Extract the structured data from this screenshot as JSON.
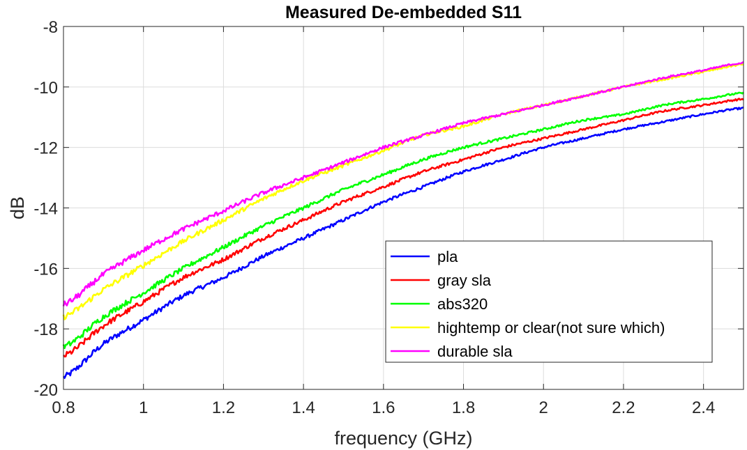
{
  "chart_data": {
    "type": "line",
    "title": "Measured De-embedded S11",
    "xlabel": "frequency (GHz)",
    "ylabel": "dB",
    "xlim": [
      0.8,
      2.5
    ],
    "ylim": [
      -20,
      -8
    ],
    "xticks": [
      0.8,
      1,
      1.2,
      1.4,
      1.6,
      1.8,
      2,
      2.2,
      2.4
    ],
    "xtick_labels": [
      "0.8",
      "1",
      "1.2",
      "1.4",
      "1.6",
      "1.8",
      "2",
      "2.2",
      "2.4"
    ],
    "yticks": [
      -20,
      -18,
      -16,
      -14,
      -12,
      -10,
      -8
    ],
    "ytick_labels": [
      "-20",
      "-18",
      "-16",
      "-14",
      "-12",
      "-10",
      "-8"
    ],
    "grid": true,
    "legend_position": "bottom-right",
    "x": [
      0.8,
      0.9,
      1.0,
      1.1,
      1.2,
      1.3,
      1.4,
      1.5,
      1.6,
      1.7,
      1.8,
      1.9,
      2.0,
      2.1,
      2.2,
      2.3,
      2.4,
      2.5
    ],
    "series": [
      {
        "name": "pla",
        "color": "#0000ff",
        "values": [
          -19.6,
          -18.5,
          -17.7,
          -16.9,
          -16.3,
          -15.6,
          -15.0,
          -14.4,
          -13.8,
          -13.3,
          -12.8,
          -12.4,
          -12.0,
          -11.7,
          -11.4,
          -11.15,
          -10.9,
          -10.7
        ]
      },
      {
        "name": "gray sla",
        "color": "#ff0000",
        "values": [
          -18.9,
          -17.9,
          -17.1,
          -16.3,
          -15.7,
          -15.0,
          -14.4,
          -13.8,
          -13.3,
          -12.8,
          -12.4,
          -12.0,
          -11.7,
          -11.4,
          -11.1,
          -10.8,
          -10.6,
          -10.4
        ]
      },
      {
        "name": "abs320",
        "color": "#00ff00",
        "values": [
          -18.6,
          -17.6,
          -16.8,
          -16.0,
          -15.3,
          -14.6,
          -14.0,
          -13.4,
          -12.9,
          -12.4,
          -12.0,
          -11.7,
          -11.4,
          -11.1,
          -10.9,
          -10.6,
          -10.4,
          -10.2
        ]
      },
      {
        "name": "hightemp or clear(not sure which)",
        "color": "#ffff00",
        "values": [
          -17.6,
          -16.7,
          -15.9,
          -15.1,
          -14.4,
          -13.7,
          -13.1,
          -12.6,
          -12.1,
          -11.6,
          -11.3,
          -10.9,
          -10.6,
          -10.3,
          -10.0,
          -9.75,
          -9.5,
          -9.25
        ]
      },
      {
        "name": "durable sla",
        "color": "#ff00ff",
        "values": [
          -17.2,
          -16.2,
          -15.4,
          -14.7,
          -14.1,
          -13.5,
          -13.0,
          -12.5,
          -12.0,
          -11.6,
          -11.2,
          -10.9,
          -10.6,
          -10.3,
          -10.0,
          -9.7,
          -9.45,
          -9.2
        ]
      }
    ]
  }
}
